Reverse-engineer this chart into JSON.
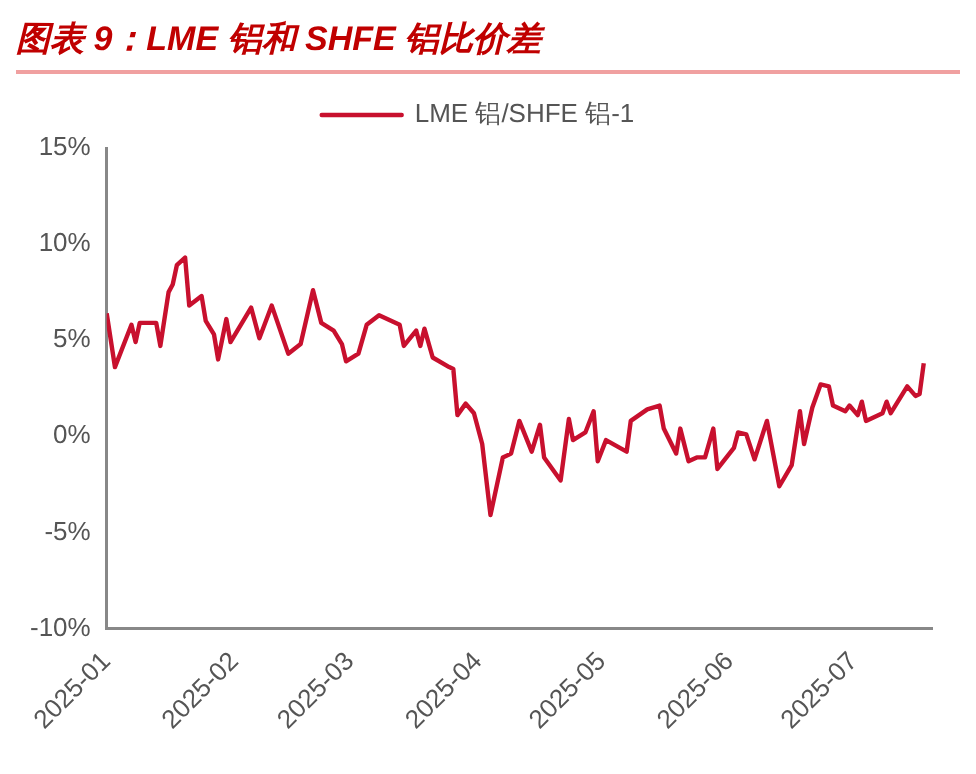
{
  "chart_data": {
    "type": "line",
    "title": "图表 9：LME 铝和 SHFE 铝比价差",
    "x": [
      "2025-01-01",
      "2025-01-03",
      "2025-01-07",
      "2025-01-08",
      "2025-01-09",
      "2025-01-13",
      "2025-01-14",
      "2025-01-16",
      "2025-01-17",
      "2025-01-18",
      "2025-01-20",
      "2025-01-21",
      "2025-01-24",
      "2025-01-25",
      "2025-01-27",
      "2025-01-28",
      "2025-01-30",
      "2025-01-31",
      "2025-02-05",
      "2025-02-07",
      "2025-02-10",
      "2025-02-14",
      "2025-02-17",
      "2025-02-20",
      "2025-02-22",
      "2025-02-25",
      "2025-02-27",
      "2025-02-28",
      "2025-03-03",
      "2025-03-05",
      "2025-03-08",
      "2025-03-13",
      "2025-03-14",
      "2025-03-17",
      "2025-03-18",
      "2025-03-19",
      "2025-03-21",
      "2025-03-25",
      "2025-03-26",
      "2025-03-27",
      "2025-03-29",
      "2025-03-31",
      "2025-04-02",
      "2025-04-04",
      "2025-04-07",
      "2025-04-09",
      "2025-04-11",
      "2025-04-14",
      "2025-04-16",
      "2025-04-17",
      "2025-04-21",
      "2025-04-23",
      "2025-04-24",
      "2025-04-27",
      "2025-04-29",
      "2025-04-30",
      "2025-05-02",
      "2025-05-07",
      "2025-05-08",
      "2025-05-12",
      "2025-05-15",
      "2025-05-16",
      "2025-05-19",
      "2025-05-20",
      "2025-05-22",
      "2025-05-24",
      "2025-05-26",
      "2025-05-28",
      "2025-05-29",
      "2025-06-02",
      "2025-06-03",
      "2025-06-05",
      "2025-06-07",
      "2025-06-10",
      "2025-06-13",
      "2025-06-16",
      "2025-06-18",
      "2025-06-19",
      "2025-06-21",
      "2025-06-23",
      "2025-06-25",
      "2025-06-26",
      "2025-06-29",
      "2025-06-30",
      "2025-07-02",
      "2025-07-03",
      "2025-07-04",
      "2025-07-08",
      "2025-07-09",
      "2025-07-10",
      "2025-07-14",
      "2025-07-16",
      "2025-07-17",
      "2025-07-18"
    ],
    "series": [
      {
        "name": "LME 铝/SHFE 铝-1",
        "color": "#c8102e",
        "values": [
          6.4,
          3.6,
          5.8,
          4.9,
          5.9,
          5.9,
          4.7,
          7.5,
          7.9,
          8.9,
          9.3,
          6.8,
          7.3,
          6.0,
          5.3,
          4.0,
          6.1,
          4.9,
          6.7,
          5.1,
          6.8,
          4.3,
          4.8,
          7.6,
          5.9,
          5.5,
          4.8,
          3.9,
          4.3,
          5.8,
          6.3,
          5.8,
          4.7,
          5.5,
          4.7,
          5.6,
          4.1,
          3.6,
          3.5,
          1.1,
          1.7,
          1.2,
          -0.4,
          -4.1,
          -1.1,
          -0.9,
          0.8,
          -0.8,
          0.6,
          -1.1,
          -2.3,
          0.9,
          -0.2,
          0.2,
          1.3,
          -1.3,
          -0.2,
          -0.8,
          0.8,
          1.4,
          1.6,
          0.4,
          -0.9,
          0.4,
          -1.3,
          -1.1,
          -1.1,
          0.4,
          -1.7,
          -0.6,
          0.2,
          0.1,
          -1.2,
          0.8,
          -2.6,
          -1.5,
          1.3,
          -0.4,
          1.5,
          2.7,
          2.6,
          1.6,
          1.3,
          1.6,
          1.1,
          1.8,
          0.8,
          1.2,
          1.8,
          1.2,
          2.6,
          2.1,
          2.2,
          3.8
        ]
      }
    ],
    "xlim": [
      "2025-01-01",
      "2025-07-20"
    ],
    "xticks": [
      "2025-01",
      "2025-02",
      "2025-03",
      "2025-04",
      "2025-05",
      "2025-06",
      "2025-07"
    ],
    "ylim": [
      -10,
      15
    ],
    "yticks": [
      {
        "value": -10,
        "label": "-10%"
      },
      {
        "value": -5,
        "label": "-5%"
      },
      {
        "value": 0,
        "label": "0%"
      },
      {
        "value": 5,
        "label": "5%"
      },
      {
        "value": 10,
        "label": "10%"
      },
      {
        "value": 15,
        "label": "15%"
      }
    ],
    "legend": "top",
    "grid": false,
    "marker": "none",
    "line_style": "solid"
  }
}
